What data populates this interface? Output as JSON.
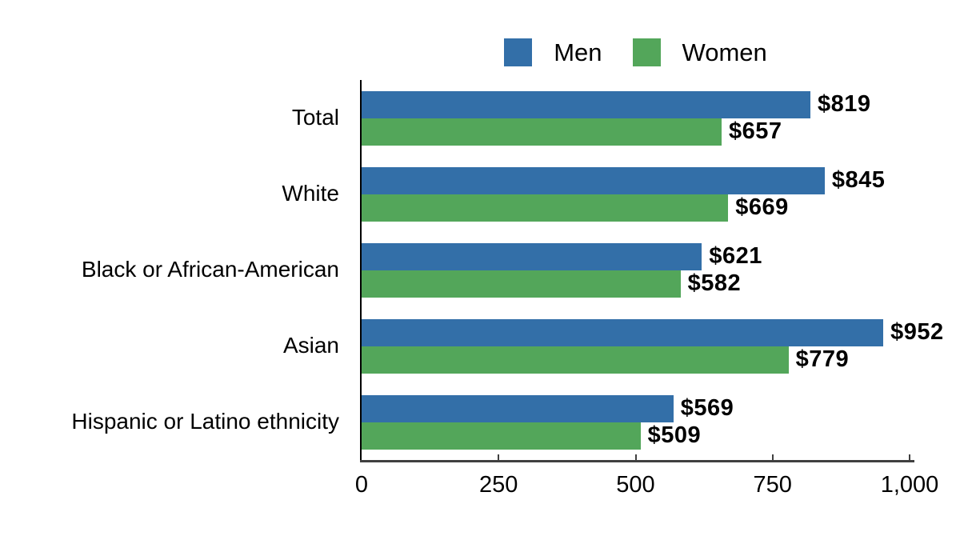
{
  "chart_data": {
    "type": "bar",
    "orientation": "horizontal",
    "title": "",
    "categories": [
      "Total",
      "White",
      "Black or African-American",
      "Asian",
      "Hispanic or Latino ethnicity"
    ],
    "series": [
      {
        "name": "Men",
        "color": "#336FA8",
        "values": [
          819,
          845,
          621,
          952,
          569
        ],
        "value_labels": [
          "$819",
          "$845",
          "$621",
          "$952",
          "$569"
        ]
      },
      {
        "name": "Women",
        "color": "#53A65A",
        "values": [
          657,
          669,
          582,
          779,
          509
        ],
        "value_labels": [
          "$657",
          "$669",
          "$582",
          "$779",
          "$509"
        ]
      }
    ],
    "xlim": [
      0,
      1000
    ],
    "x_ticks": [
      {
        "value": 0,
        "label": "0"
      },
      {
        "value": 250,
        "label": "250"
      },
      {
        "value": 500,
        "label": "500"
      },
      {
        "value": 750,
        "label": "750"
      },
      {
        "value": 1000,
        "label": "1,000"
      }
    ],
    "legend_position": "top",
    "grid": false,
    "axis_colors": {
      "y_axis": "#000000",
      "x_axis": "#404040"
    }
  }
}
